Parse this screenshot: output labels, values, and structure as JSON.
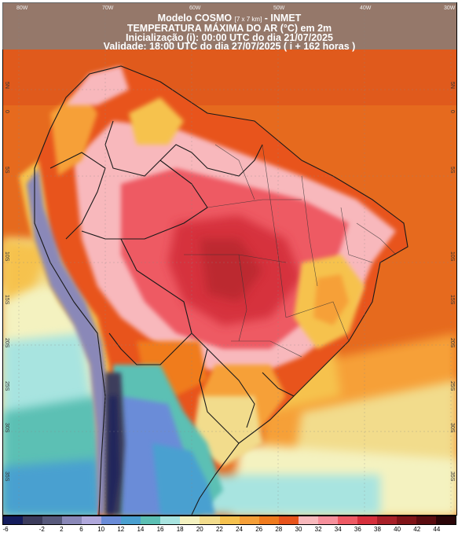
{
  "header": {
    "model": "Modelo COSMO",
    "resolution": "[7 x 7 km]",
    "source": "- INMET",
    "variable": "TEMPERATURA MÁXIMA DO AR (°C) em 2m",
    "init": "Inicialização (i): 00:00 UTC do dia 21/07/2025",
    "valid": "Validade: 18:00 UTC do dia 27/07/2025 ( i + 162 horas )"
  },
  "lon_labels": [
    "80W",
    "70W",
    "60W",
    "50W",
    "40W",
    "30W"
  ],
  "lat_labels_left": [
    "5N",
    "0",
    "5S",
    "10S",
    "15S",
    "20S",
    "25S",
    "30S",
    "35S"
  ],
  "lat_labels_right": [
    "5N",
    "0",
    "5S",
    "10S",
    "15S",
    "20S",
    "25S",
    "30S",
    "35S"
  ],
  "legend": {
    "ticks": [
      "-6",
      "-2",
      "2",
      "6",
      "10",
      "12",
      "14",
      "16",
      "18",
      "20",
      "22",
      "24",
      "26",
      "28",
      "30",
      "32",
      "34",
      "36",
      "38",
      "40",
      "42",
      "44"
    ],
    "colors": [
      "#141c5c",
      "#3c3c5c",
      "#585a7c",
      "#8a88b8",
      "#b0a8dc",
      "#6a8cd8",
      "#4aa0d0",
      "#5cc0b4",
      "#a8e4e0",
      "#f4f2c0",
      "#f2dc8c",
      "#f6c24e",
      "#f6a038",
      "#f07b1e",
      "#e8541c",
      "#f8b8bc",
      "#f6909c",
      "#ee5a64",
      "#d6303c",
      "#a82028",
      "#801418",
      "#5a0c10",
      "#2a0508"
    ]
  }
}
